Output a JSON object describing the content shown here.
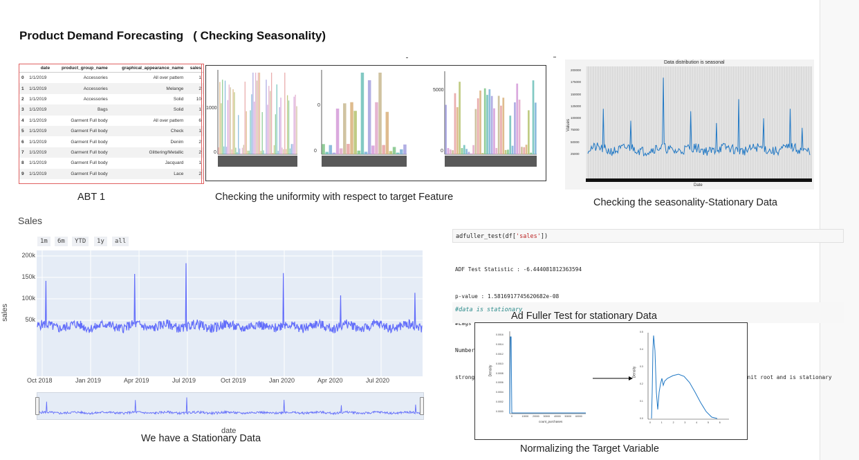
{
  "page_title": "Product Demand Forecasting   ( Checking Seasonality)",
  "captions": {
    "abt": "ABT 1",
    "uniformity": "Checking the uniformity with respect to target Feature",
    "seasonality": "Checking the seasonality-Stationary Data",
    "stationary": "We have a Stationary Data",
    "adfuller": "Ad Fuller Test for stationary Data",
    "normalize": "Normalizing the Target Variable"
  },
  "abt_table": {
    "headers": [
      "",
      "date",
      "product_group_name",
      "graphical_appearance_name",
      "sales"
    ],
    "rows": [
      [
        "0",
        "1/1/2019",
        "Accessories",
        "All over pattern",
        "1"
      ],
      [
        "1",
        "1/1/2019",
        "Accessories",
        "Melange",
        "2"
      ],
      [
        "2",
        "1/1/2019",
        "Accessories",
        "Solid",
        "10"
      ],
      [
        "3",
        "1/1/2019",
        "Bags",
        "Solid",
        "1"
      ],
      [
        "4",
        "1/1/2019",
        "Garment Full body",
        "All over pattern",
        "6"
      ],
      [
        "5",
        "1/1/2019",
        "Garment Full body",
        "Check",
        "1"
      ],
      [
        "6",
        "1/1/2019",
        "Garment Full body",
        "Denim",
        "2"
      ],
      [
        "7",
        "1/1/2019",
        "Garment Full body",
        "Glittering/Metallic",
        "2"
      ],
      [
        "8",
        "1/1/2019",
        "Garment Full body",
        "Jacquard",
        "1"
      ],
      [
        "9",
        "1/1/2019",
        "Garment Full body",
        "Lace",
        "2"
      ]
    ]
  },
  "uniformity_panel": {
    "tick_1000": "1000",
    "tick_0a": "0",
    "tick_0b": "0",
    "tick_5000": "5000",
    "tick_0c": "0",
    "tick_0d": "0"
  },
  "seasonality_panel": {
    "title": "Data distribution is seasonal",
    "ylabel": "Values",
    "xlabel": "Date",
    "yticks": [
      "200000",
      "175000",
      "150000",
      "125000",
      "100000",
      "75000",
      "50000",
      "25000"
    ]
  },
  "plotly": {
    "title": "Sales",
    "ylabel": "sales",
    "xlabel": "date",
    "range_buttons": [
      "1m",
      "6m",
      "YTD",
      "1y",
      "all"
    ],
    "yticks": [
      "200k",
      "150k",
      "100k",
      "50k"
    ],
    "xticks": [
      "Oct 2018",
      "Jan 2019",
      "Apr 2019",
      "Jul 2019",
      "Oct 2019",
      "Jan 2020",
      "Apr 2020",
      "Jul 2020"
    ],
    "line_color": "#636efa"
  },
  "adfuller": {
    "code": "adfuller_test(df['sales'])",
    "code_fn": "adfuller_test(df[",
    "code_str": "'sales'",
    "code_end": "])",
    "output": [
      "ADF Test Statistic : -6.444081812363594",
      "p-value : 1.5816917745620682e-08",
      "#Lags Used : 8",
      "Number of Observations Used : 725",
      "strong evidence against the null hypothesis(Ho), reject the null hypothesis. Data has no unit root and is stationary"
    ],
    "comment": "#data is stationary"
  },
  "normalize_panel": {
    "left_ylabel": "Density",
    "left_xlabel": "count_purchases",
    "left_yticks": [
      "0.0016",
      "0.0014",
      "0.0012",
      "0.0010",
      "0.0008",
      "0.0006",
      "0.0004",
      "0.0002",
      "0.0000"
    ],
    "left_xticks": [
      "0",
      "10000",
      "20000",
      "30000",
      "40000",
      "50000",
      "60000"
    ],
    "right_ylabel": "Density",
    "right_yticks": [
      "0.5",
      "0.4",
      "0.3",
      "0.2",
      "0.1",
      "0.0"
    ],
    "right_xticks": [
      "0",
      "1",
      "2",
      "3",
      "4",
      "5",
      "6"
    ]
  },
  "colors": {
    "accent_line": "#636efa",
    "season_line": "#1f77c4",
    "table_border": "#e06060"
  }
}
